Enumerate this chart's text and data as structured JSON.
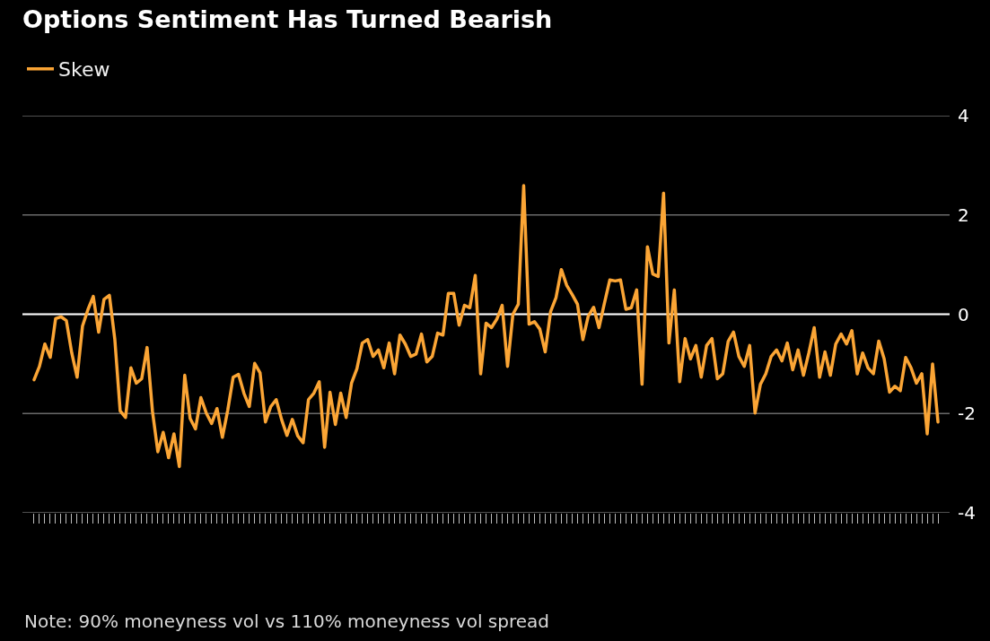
{
  "chart_data": {
    "type": "line",
    "title": "Options Sentiment Has Turned Bearish",
    "categories": [
      null,
      null,
      null,
      null,
      null,
      null,
      null,
      null,
      null,
      null,
      null,
      null,
      null,
      null,
      null,
      null,
      null,
      null,
      null,
      null,
      null,
      null,
      null,
      null,
      null,
      null,
      null,
      null,
      null,
      null,
      null,
      null,
      null,
      null,
      null,
      null,
      null,
      null,
      null,
      null,
      null,
      null,
      null,
      null,
      null,
      null,
      null,
      null,
      null,
      null,
      null,
      null,
      null,
      null,
      null,
      null,
      null,
      null,
      null,
      null,
      null,
      null,
      null,
      null,
      null,
      null,
      null,
      null,
      null,
      null,
      null,
      null,
      null,
      null,
      null,
      null,
      null,
      null,
      null,
      null,
      null,
      null,
      null,
      null,
      null,
      null,
      null,
      null,
      null,
      null,
      null,
      null,
      null,
      null,
      null,
      null,
      null,
      null,
      null,
      null,
      null,
      null,
      null,
      null,
      null,
      null,
      null,
      null,
      null,
      null,
      null,
      null,
      null,
      null,
      null,
      null,
      null,
      null,
      null,
      null,
      null,
      null,
      null,
      null,
      null,
      null,
      null,
      null,
      null,
      null,
      null,
      null,
      null,
      null,
      null,
      null,
      null,
      null,
      null,
      null,
      null,
      null,
      null,
      null,
      null,
      null,
      null,
      null,
      null,
      null,
      null,
      null,
      null,
      null,
      null,
      null,
      null,
      null,
      null,
      null,
      null,
      null,
      null,
      null,
      null,
      null,
      null,
      null,
      null
    ],
    "series": [
      {
        "name": "Skew",
        "color": "#fba535",
        "values": [
          -1.32,
          -1.05,
          -0.6,
          -0.87,
          -0.09,
          -0.05,
          -0.13,
          -0.78,
          -1.27,
          -0.24,
          0.09,
          0.36,
          -0.36,
          0.3,
          0.38,
          -0.5,
          -1.95,
          -2.08,
          -1.08,
          -1.39,
          -1.3,
          -0.67,
          -1.95,
          -2.77,
          -2.38,
          -2.89,
          -2.41,
          -3.07,
          -1.23,
          -2.1,
          -2.31,
          -1.68,
          -1.99,
          -2.2,
          -1.9,
          -2.48,
          -1.93,
          -1.27,
          -1.21,
          -1.59,
          -1.86,
          -0.99,
          -1.18,
          -2.17,
          -1.86,
          -1.72,
          -2.12,
          -2.44,
          -2.12,
          -2.45,
          -2.59,
          -1.72,
          -1.59,
          -1.36,
          -2.68,
          -1.57,
          -2.22,
          -1.59,
          -2.08,
          -1.39,
          -1.1,
          -0.58,
          -0.51,
          -0.85,
          -0.72,
          -1.08,
          -0.58,
          -1.2,
          -0.42,
          -0.6,
          -0.85,
          -0.8,
          -0.4,
          -0.96,
          -0.85,
          -0.38,
          -0.42,
          0.42,
          0.42,
          -0.22,
          0.18,
          0.13,
          0.78,
          -1.2,
          -0.18,
          -0.27,
          -0.1,
          0.18,
          -1.05,
          0,
          0.2,
          2.59,
          -0.2,
          -0.15,
          -0.3,
          -0.76,
          0.05,
          0.33,
          0.9,
          0.58,
          0.4,
          0.2,
          -0.51,
          -0.04,
          0.14,
          -0.27,
          0.22,
          0.69,
          0.67,
          0.69,
          0.1,
          0.13,
          0.49,
          -1.41,
          1.36,
          0.81,
          0.76,
          2.44,
          -0.58,
          0.49,
          -1.36,
          -0.49,
          -0.9,
          -0.63,
          -1.27,
          -0.63,
          -0.49,
          -1.3,
          -1.2,
          -0.55,
          -0.36,
          -0.85,
          -1.05,
          -0.63,
          -1.99,
          -1.41,
          -1.2,
          -0.85,
          -0.72,
          -0.94,
          -0.58,
          -1.12,
          -0.72,
          -1.23,
          -0.78,
          -0.27,
          -1.27,
          -0.76,
          -1.23,
          -0.6,
          -0.4,
          -0.6,
          -0.33,
          -1.2,
          -0.78,
          -1.08,
          -1.2,
          -0.54,
          -0.9,
          -1.57,
          -1.45,
          -1.54,
          -0.87,
          -1.08,
          -1.39,
          -1.2,
          -2.41,
          -1.0,
          -2.17
        ]
      }
    ],
    "ylim": [
      -4,
      4
    ],
    "yticks": [
      -4,
      -2,
      0,
      2,
      4
    ],
    "grid": "y",
    "legend": "top left",
    "tick_labels": "y",
    "line_style": "solid",
    "ref_lines": [
      {
        "axis": "y",
        "value": 0,
        "color": "#ffffff"
      }
    ],
    "annotations": [
      "Note: 90% moneyness vol vs 110% moneyness vol spread"
    ]
  }
}
